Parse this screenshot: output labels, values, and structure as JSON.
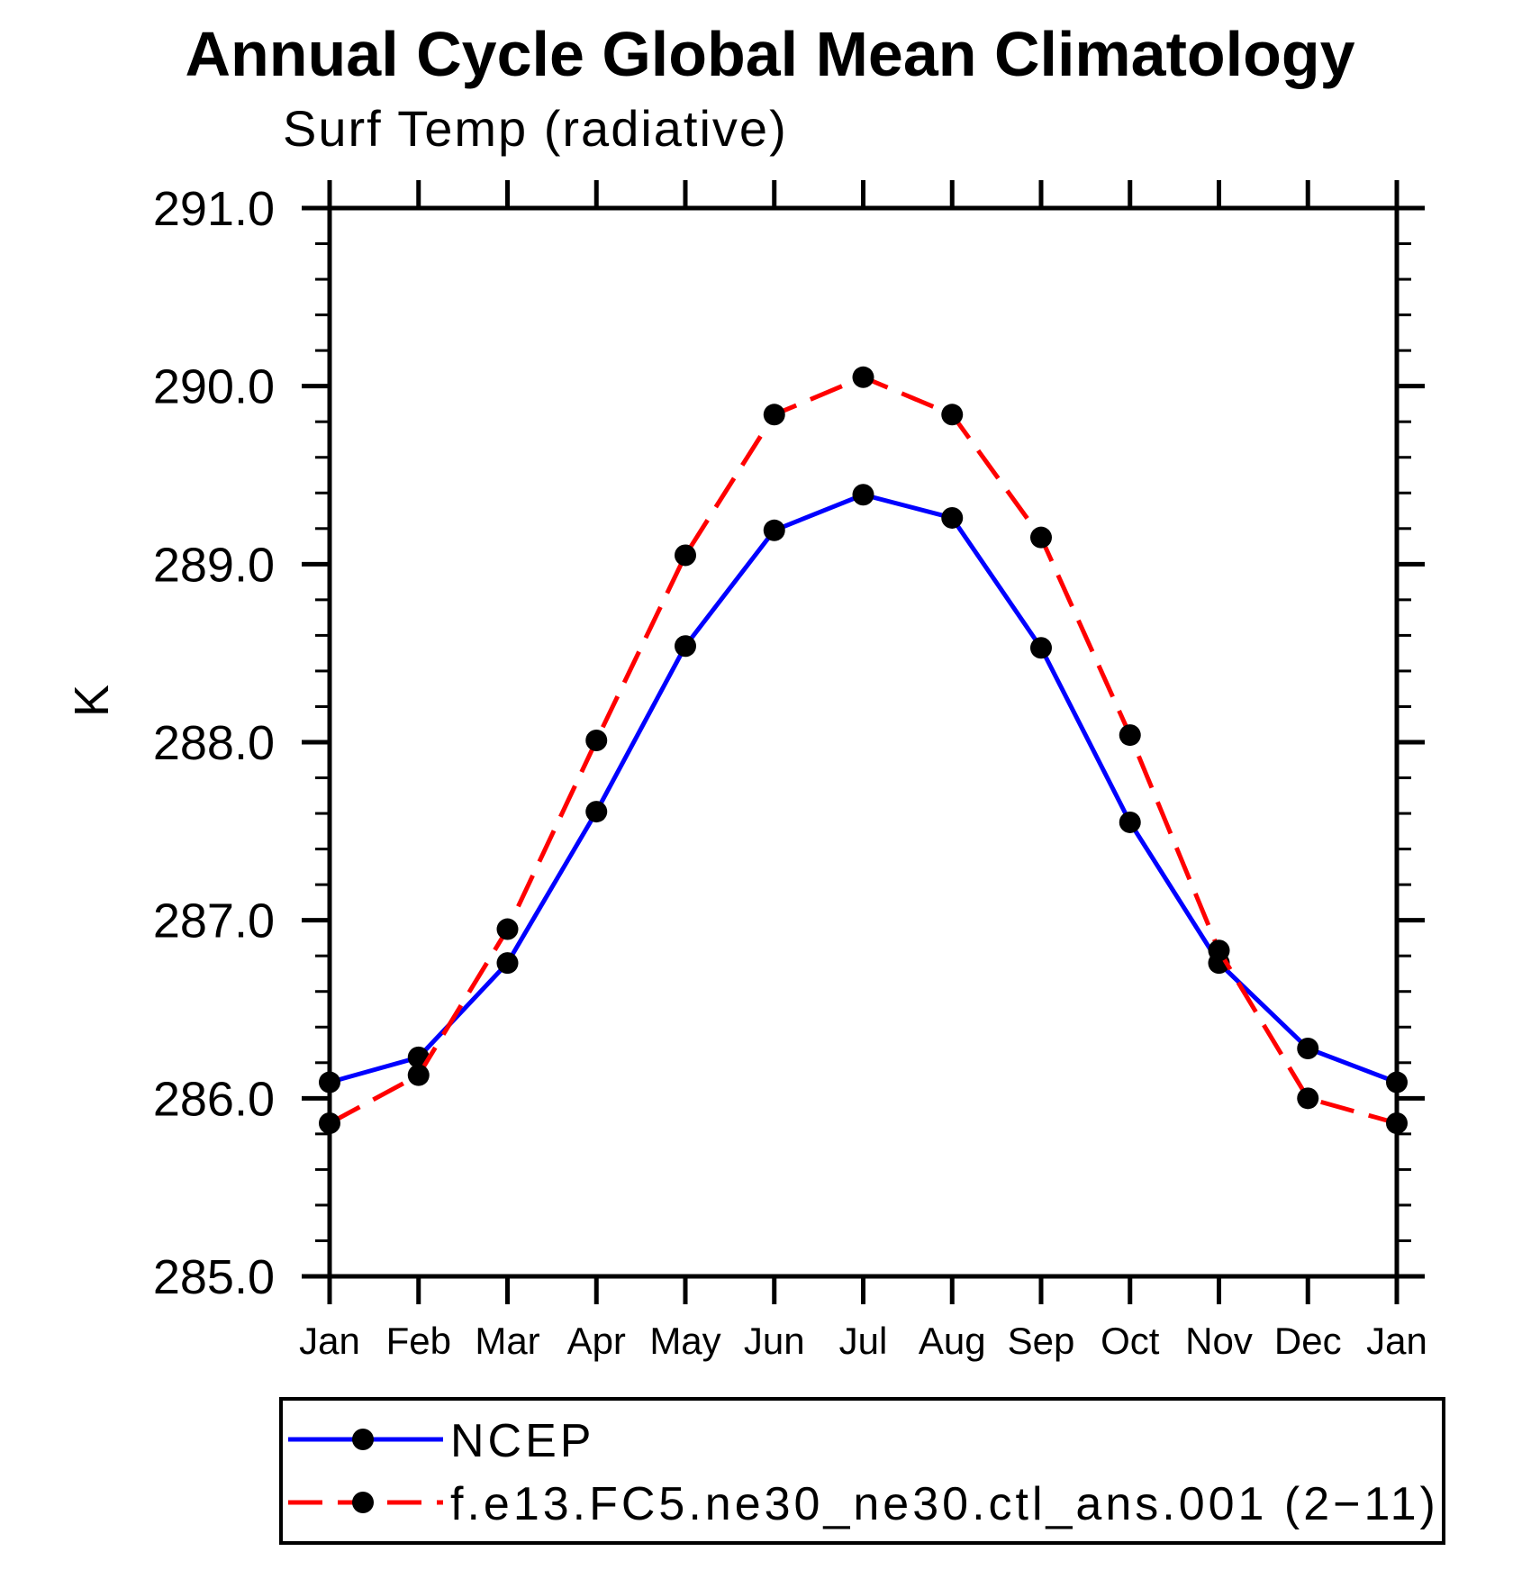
{
  "chart_data": {
    "type": "line",
    "title": "Annual Cycle Global Mean Climatology",
    "subtitle": "Surf Temp (radiative)",
    "ylabel": "K",
    "xlabel": "",
    "ylim": [
      285.0,
      291.0
    ],
    "ytick_step": 1.0,
    "yminor_step": 0.2,
    "ytick_labels": [
      "285.0",
      "286.0",
      "287.0",
      "288.0",
      "289.0",
      "290.0",
      "291.0"
    ],
    "categories": [
      "Jan",
      "Feb",
      "Mar",
      "Apr",
      "May",
      "Jun",
      "Jul",
      "Aug",
      "Sep",
      "Oct",
      "Nov",
      "Dec",
      "Jan"
    ],
    "grid": false,
    "legend_position": "bottom",
    "marker": "filled-circle",
    "marker_color": "#000000",
    "frame_color": "#000000",
    "series": [
      {
        "name": "NCEP",
        "color": "#0000ff",
        "style": "solid",
        "values": [
          286.09,
          286.23,
          286.76,
          287.61,
          288.54,
          289.19,
          289.39,
          289.26,
          288.53,
          287.55,
          286.76,
          286.28,
          286.09
        ]
      },
      {
        "name": "f.e13.FC5.ne30_ne30.ctl_ans.001 (2−11)",
        "color": "#ff0000",
        "style": "dashed",
        "values": [
          285.86,
          286.13,
          286.95,
          288.01,
          289.05,
          289.84,
          290.05,
          289.84,
          289.15,
          288.04,
          286.83,
          286.0,
          285.86
        ]
      }
    ]
  }
}
